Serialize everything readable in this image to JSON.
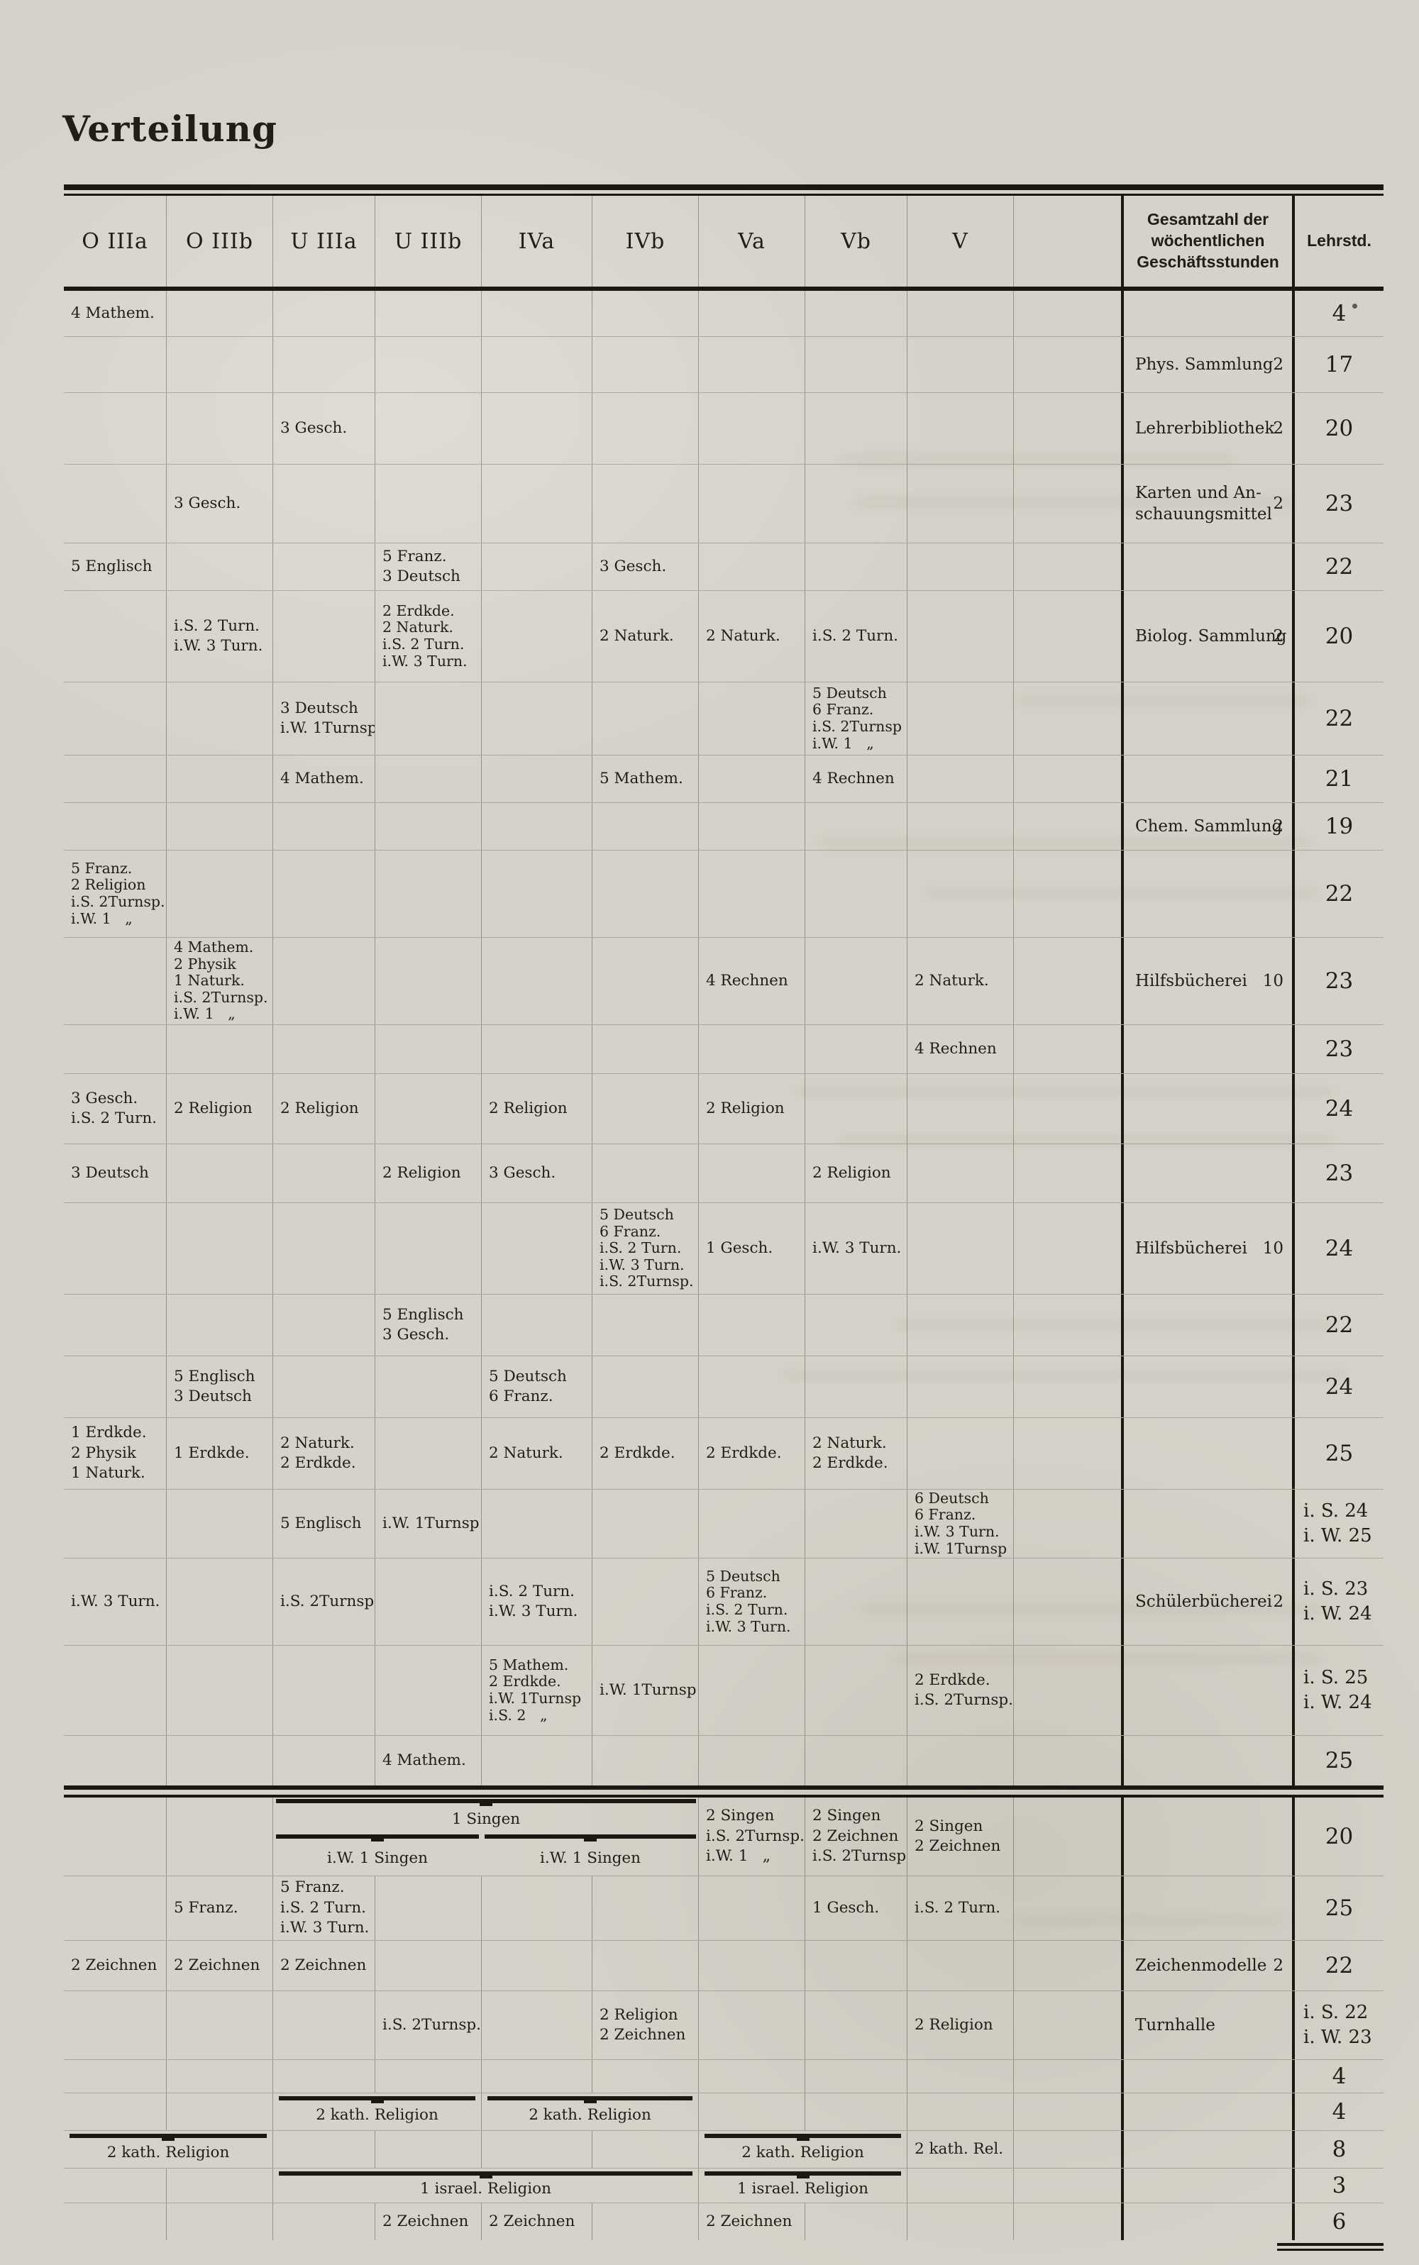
{
  "page": {
    "title": "Verteilung"
  },
  "header": {
    "classes": [
      "O IIIa",
      "O IIIb",
      "U IIIa",
      "U IIIb",
      "IVa",
      "IVb",
      "Va",
      "Vb",
      "V"
    ],
    "total_line1": "Gesamtzahl der wöchentlichen",
    "total_line2": "Geschäftsstunden",
    "hours_label": "Lehrstd."
  },
  "rows": [
    {
      "cells": [
        {
          "col": 0,
          "lines": [
            "4 Mathem."
          ]
        }
      ],
      "hours": [
        "4"
      ]
    },
    {
      "cells": [],
      "total": {
        "lines": [
          "Phys. Sammlung"
        ],
        "num": "2"
      },
      "hours": [
        "17"
      ]
    },
    {
      "cells": [
        {
          "col": 2,
          "lines": [
            "3 Gesch."
          ]
        }
      ],
      "total": {
        "lines": [
          "Lehrerbibliothek"
        ],
        "num": "2"
      },
      "hours": [
        "20"
      ]
    },
    {
      "cells": [
        {
          "col": 1,
          "lines": [
            "3 Gesch."
          ]
        }
      ],
      "total": {
        "lines": [
          "Karten und An-",
          "schauungsmittel"
        ],
        "num": "2"
      },
      "hours": [
        "23"
      ]
    },
    {
      "cells": [
        {
          "col": 0,
          "lines": [
            "5 Englisch"
          ]
        },
        {
          "col": 3,
          "lines": [
            "5 Franz.",
            "3 Deutsch"
          ]
        },
        {
          "col": 5,
          "lines": [
            "3 Gesch."
          ]
        }
      ],
      "hours": [
        "22"
      ]
    },
    {
      "cells": [
        {
          "col": 1,
          "lines": [
            "i.S. 2 Turn.",
            "i.W. 3 Turn."
          ]
        },
        {
          "col": 3,
          "lines": [
            "2 Erdkde.",
            "2 Naturk.",
            "i.S. 2 Turn.",
            "i.W. 3 Turn."
          ]
        },
        {
          "col": 5,
          "lines": [
            "2 Naturk."
          ]
        },
        {
          "col": 6,
          "lines": [
            "2 Naturk."
          ]
        },
        {
          "col": 7,
          "lines": [
            "i.S. 2 Turn."
          ]
        }
      ],
      "total": {
        "lines": [
          "Biolog. Sammlung"
        ],
        "num": "2"
      },
      "hours": [
        "20"
      ]
    },
    {
      "cells": [
        {
          "col": 2,
          "lines": [
            "3 Deutsch",
            "i.W. 1Turnsp"
          ]
        },
        {
          "col": 7,
          "lines": [
            "5 Deutsch",
            "6 Franz.",
            "i.S. 2Turnsp",
            "i.W. 1   „"
          ]
        }
      ],
      "hours": [
        "22"
      ]
    },
    {
      "cells": [
        {
          "col": 2,
          "lines": [
            "4 Mathem."
          ]
        },
        {
          "col": 5,
          "lines": [
            "5 Mathem."
          ]
        },
        {
          "col": 7,
          "lines": [
            "4 Rechnen"
          ]
        }
      ],
      "hours": [
        "21"
      ]
    },
    {
      "cells": [],
      "total": {
        "lines": [
          "Chem. Sammlung"
        ],
        "num": "2"
      },
      "hours": [
        "19"
      ]
    },
    {
      "cells": [
        {
          "col": 0,
          "lines": [
            "5 Franz.",
            "2 Religion",
            "i.S. 2Turnsp.",
            "i.W. 1   „"
          ]
        }
      ],
      "hours": [
        "22"
      ]
    },
    {
      "cells": [
        {
          "col": 1,
          "lines": [
            "4 Mathem.",
            "2 Physik",
            "1 Naturk.",
            "i.S. 2Turnsp.",
            "i.W. 1   „"
          ]
        },
        {
          "col": 6,
          "lines": [
            "4 Rechnen"
          ]
        },
        {
          "col": 8,
          "lines": [
            "2 Naturk."
          ]
        }
      ],
      "total": {
        "lines": [
          "Hilfsbücherei"
        ],
        "num": "10"
      },
      "hours": [
        "23"
      ]
    },
    {
      "cells": [
        {
          "col": 8,
          "lines": [
            "4 Rechnen"
          ]
        }
      ],
      "hours": [
        "23"
      ]
    },
    {
      "cells": [
        {
          "col": 0,
          "lines": [
            "3 Gesch.",
            "i.S. 2 Turn."
          ]
        },
        {
          "col": 1,
          "lines": [
            "2 Religion"
          ]
        },
        {
          "col": 2,
          "lines": [
            "2 Religion"
          ]
        },
        {
          "col": 4,
          "lines": [
            "2 Religion"
          ]
        },
        {
          "col": 6,
          "lines": [
            "2 Religion"
          ]
        }
      ],
      "hours": [
        "24"
      ]
    },
    {
      "cells": [
        {
          "col": 0,
          "lines": [
            "3 Deutsch"
          ]
        },
        {
          "col": 3,
          "lines": [
            "2 Religion"
          ]
        },
        {
          "col": 4,
          "lines": [
            "3 Gesch."
          ]
        },
        {
          "col": 7,
          "lines": [
            "2 Religion"
          ]
        }
      ],
      "hours": [
        "23"
      ]
    },
    {
      "cells": [
        {
          "col": 5,
          "lines": [
            "5 Deutsch",
            "6 Franz.",
            "i.S. 2 Turn.",
            "i.W. 3 Turn.",
            "i.S. 2Turnsp."
          ]
        },
        {
          "col": 6,
          "lines": [
            "1 Gesch."
          ]
        },
        {
          "col": 7,
          "lines": [
            "i.W. 3 Turn."
          ]
        }
      ],
      "total": {
        "lines": [
          "Hilfsbücherei"
        ],
        "num": "10"
      },
      "hours": [
        "24"
      ]
    },
    {
      "cells": [
        {
          "col": 3,
          "lines": [
            "5 Englisch",
            "3 Gesch."
          ]
        }
      ],
      "hours": [
        "22"
      ]
    },
    {
      "cells": [
        {
          "col": 1,
          "lines": [
            "5 Englisch",
            "3 Deutsch"
          ]
        },
        {
          "col": 4,
          "lines": [
            "5 Deutsch",
            "6 Franz."
          ]
        }
      ],
      "hours": [
        "24"
      ]
    },
    {
      "cells": [
        {
          "col": 0,
          "lines": [
            "1 Erdkde.",
            "2 Physik",
            "1 Naturk."
          ]
        },
        {
          "col": 1,
          "lines": [
            "1 Erdkde."
          ]
        },
        {
          "col": 2,
          "lines": [
            "2 Naturk.",
            "2 Erdkde."
          ]
        },
        {
          "col": 4,
          "lines": [
            "2 Naturk."
          ]
        },
        {
          "col": 5,
          "lines": [
            "2 Erdkde."
          ]
        },
        {
          "col": 6,
          "lines": [
            "2 Erdkde."
          ]
        },
        {
          "col": 7,
          "lines": [
            "2 Naturk.",
            "2 Erdkde."
          ]
        }
      ],
      "hours": [
        "25"
      ]
    },
    {
      "cells": [
        {
          "col": 2,
          "lines": [
            "5 Englisch"
          ]
        },
        {
          "col": 3,
          "lines": [
            "i.W. 1Turnsp"
          ]
        },
        {
          "col": 8,
          "lines": [
            "6 Deutsch",
            "6 Franz.",
            "i.W. 3 Turn.",
            "i.W. 1Turnsp"
          ]
        }
      ],
      "hours": [
        "i. S. 24",
        "i. W. 25"
      ]
    },
    {
      "cells": [
        {
          "col": 0,
          "lines": [
            "i.W. 3 Turn."
          ]
        },
        {
          "col": 2,
          "lines": [
            "i.S. 2Turnsp."
          ]
        },
        {
          "col": 4,
          "lines": [
            "i.S. 2 Turn.",
            "i.W. 3 Turn."
          ]
        },
        {
          "col": 6,
          "lines": [
            "5 Deutsch",
            "6 Franz.",
            "i.S. 2 Turn.",
            "i.W. 3 Turn."
          ]
        }
      ],
      "total": {
        "lines": [
          "Schülerbücherei"
        ],
        "num": "2"
      },
      "hours": [
        "i. S. 23",
        "i. W. 24"
      ]
    },
    {
      "cells": [
        {
          "col": 4,
          "lines": [
            "5 Mathem.",
            "2 Erdkde.",
            "i.W. 1Turnsp",
            "i.S. 2   „"
          ]
        },
        {
          "col": 5,
          "lines": [
            "i.W. 1Turnsp"
          ]
        },
        {
          "col": 8,
          "lines": [
            "2 Erdkde.",
            "i.S. 2Turnsp."
          ]
        }
      ],
      "hours": [
        "i. S. 25",
        "i. W. 24"
      ]
    },
    {
      "cells": [
        {
          "col": 3,
          "lines": [
            "4 Mathem."
          ]
        }
      ],
      "hours": [
        "25"
      ],
      "rule_after": true
    },
    {
      "stack": {
        "top": {
          "col": 2,
          "span": 4,
          "lines": [
            "1 Singen"
          ],
          "brace": true
        },
        "bottom": [
          {
            "col": 2,
            "span": 2,
            "lines": [
              "i.W. 1 Singen"
            ],
            "brace": true
          },
          {
            "col": 4,
            "span": 2,
            "lines": [
              "i.W. 1 Singen"
            ],
            "brace": true
          }
        ]
      },
      "cells": [
        {
          "col": 6,
          "lines": [
            "2 Singen",
            "i.S. 2Turnsp.",
            "i.W. 1   „"
          ]
        },
        {
          "col": 7,
          "lines": [
            "2 Singen",
            "2 Zeichnen",
            "i.S. 2Turnsp."
          ]
        },
        {
          "col": 8,
          "lines": [
            "2 Singen",
            "2 Zeichnen"
          ]
        }
      ],
      "hours": [
        "20"
      ]
    },
    {
      "cells": [
        {
          "col": 1,
          "lines": [
            "5 Franz."
          ]
        },
        {
          "col": 2,
          "lines": [
            "5 Franz.",
            "i.S. 2 Turn.",
            "i.W. 3 Turn."
          ]
        },
        {
          "col": 7,
          "lines": [
            "1 Gesch."
          ]
        },
        {
          "col": 8,
          "lines": [
            "i.S. 2 Turn."
          ]
        }
      ],
      "hours": [
        "25"
      ]
    },
    {
      "cells": [
        {
          "col": 0,
          "lines": [
            "2 Zeichnen"
          ]
        },
        {
          "col": 1,
          "lines": [
            "2 Zeichnen"
          ]
        },
        {
          "col": 2,
          "lines": [
            "2 Zeichnen"
          ]
        }
      ],
      "total": {
        "lines": [
          "Zeichenmodelle"
        ],
        "num": "2"
      },
      "hours": [
        "22"
      ]
    },
    {
      "cells": [
        {
          "col": 3,
          "lines": [
            "i.S. 2Turnsp."
          ]
        },
        {
          "col": 5,
          "lines": [
            "2 Religion",
            "2 Zeichnen"
          ]
        },
        {
          "col": 8,
          "lines": [
            "2 Religion"
          ]
        }
      ],
      "total": {
        "lines": [
          "Turnhalle"
        ],
        "num": ""
      },
      "hours": [
        "i. S. 22",
        "i. W. 23"
      ]
    },
    {
      "cells": [],
      "hours": [
        "4"
      ]
    },
    {
      "cells": [
        {
          "col": 2,
          "span": 2,
          "lines": [
            "2 kath. Religion"
          ],
          "brace": true
        },
        {
          "col": 4,
          "span": 2,
          "lines": [
            "2 kath. Religion"
          ],
          "brace": true
        }
      ],
      "hours": [
        "4"
      ]
    },
    {
      "cells": [
        {
          "col": 0,
          "span": 2,
          "lines": [
            "2 kath. Religion"
          ],
          "brace": true
        },
        {
          "col": 6,
          "span": 2,
          "lines": [
            "2 kath. Religion"
          ],
          "brace": true
        },
        {
          "col": 8,
          "lines": [
            "2 kath. Rel."
          ]
        }
      ],
      "hours": [
        "8"
      ]
    },
    {
      "cells": [
        {
          "col": 2,
          "span": 4,
          "lines": [
            "1 israel. Religion"
          ],
          "brace": true
        },
        {
          "col": 6,
          "span": 2,
          "lines": [
            "1 israel. Religion"
          ],
          "brace": true
        }
      ],
      "hours": [
        "3"
      ]
    },
    {
      "cells": [
        {
          "col": 3,
          "lines": [
            "2 Zeichnen"
          ]
        },
        {
          "col": 4,
          "lines": [
            "2 Zeichnen"
          ]
        },
        {
          "col": 6,
          "lines": [
            "2 Zeichnen"
          ]
        }
      ],
      "hours": [
        "6"
      ]
    }
  ]
}
